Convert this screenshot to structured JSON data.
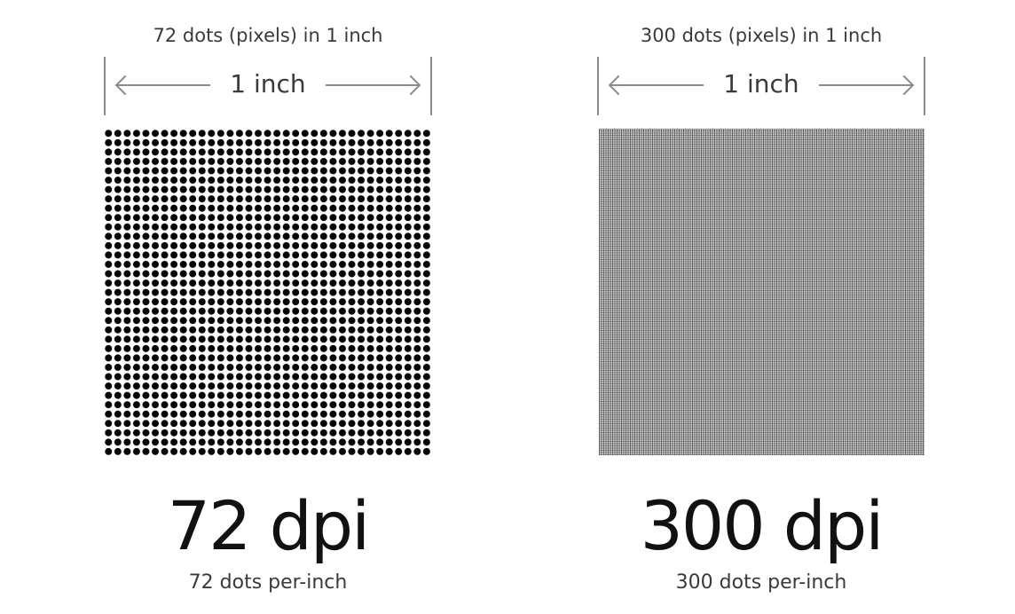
{
  "left": {
    "caption": "72 dots (pixels) in 1 inch",
    "measure_label": "1 inch",
    "big_label": "72 dpi",
    "sub_label": "72 dots per-inch",
    "dot_color": "#050505"
  },
  "right": {
    "caption": "300 dots (pixels) in 1 inch",
    "measure_label": "1 inch",
    "big_label": "300 dpi",
    "sub_label": "300 dots per-inch",
    "dot_color": "#282828"
  },
  "colors": {
    "background": "#ffffff",
    "rule": "#8c8c8c",
    "text": "#111111"
  }
}
